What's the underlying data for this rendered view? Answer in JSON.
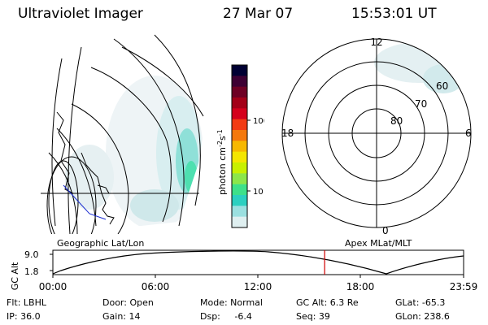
{
  "header": {
    "instrument": "Ultraviolet Imager",
    "date": "27 Mar 07",
    "time": "15:53:01 UT"
  },
  "colorbar": {
    "label": "photon cm",
    "label_exp1": "-2",
    "label_unit2": "s",
    "label_exp2": "-1",
    "ticks": [
      "100",
      "10"
    ],
    "colors": [
      "#000033",
      "#3d0033",
      "#6e0024",
      "#a30018",
      "#d4001c",
      "#f23b14",
      "#f4780c",
      "#f7b800",
      "#f4e600",
      "#c8f000",
      "#8ce64a",
      "#3ee08a",
      "#2cd0c0",
      "#9be0e0",
      "#dfeff0"
    ]
  },
  "maps": {
    "left_caption": "Geographic Lat/Lon",
    "right_caption": "Apex MLat/MLT",
    "polar_lat_labels": [
      "80",
      "70",
      "60"
    ],
    "polar_mlt_labels": {
      "top": "12",
      "left": "18",
      "right": "6",
      "bottom": "0"
    }
  },
  "timeline": {
    "axis_label": "GC Alt",
    "y_ticks": [
      "9.0",
      "1.8"
    ],
    "x_ticks": [
      "00:00",
      "06:00",
      "12:00",
      "18:00",
      "23:59"
    ],
    "current_marker_hours": 15.88
  },
  "status": {
    "filter": "Flt: LBHL",
    "ip": "IP: 36.0",
    "door": "Door: Open",
    "gain": "Gain: 14",
    "mode": "Mode: Normal",
    "dsp": "Dsp:     -6.4",
    "gc_alt": "GC Alt: 6.3 Re",
    "seq": "Seq: 39",
    "glat": "GLat: -65.3",
    "glon": "GLon: 238.6"
  }
}
